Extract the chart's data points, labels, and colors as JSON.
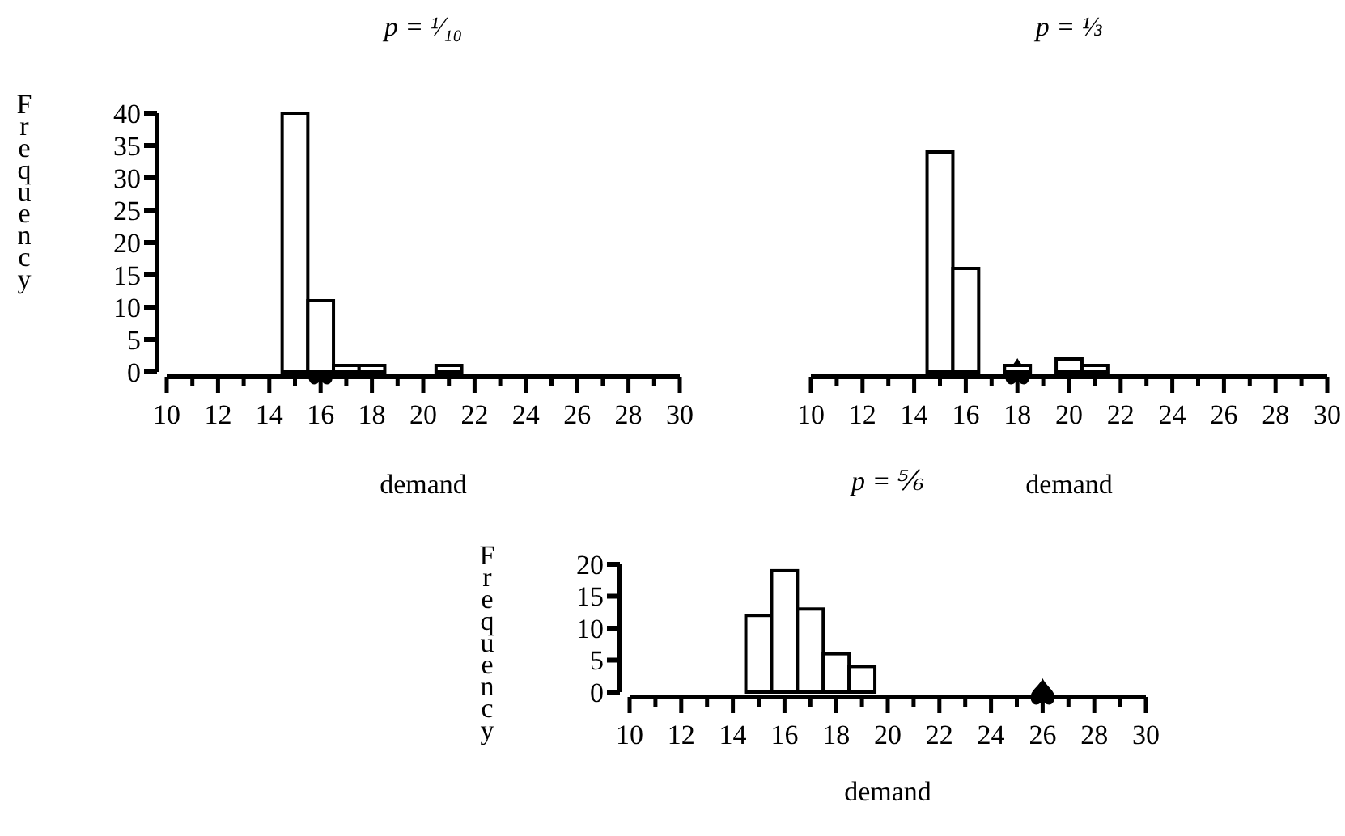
{
  "chart_data": [
    {
      "type": "histogram",
      "title": "p = ¹⁄₁₀",
      "xlabel": "demand",
      "ylabel": "Frequency",
      "bins": [
        14.5,
        15.5,
        16.5,
        17.5,
        18.5,
        19.5,
        20.5,
        21.5
      ],
      "values": [
        40,
        11,
        1,
        1,
        0,
        0,
        1
      ],
      "color": "#ffffff",
      "xlim": [
        10,
        30
      ],
      "xticks": [
        10,
        {
          "value": 11,
          "label": null
        },
        12,
        {
          "value": 13,
          "label": null
        },
        14,
        {
          "value": 15,
          "label": null
        },
        16,
        {
          "value": 17,
          "label": null
        },
        18,
        {
          "value": 19,
          "label": null
        },
        20,
        {
          "value": 21,
          "label": null
        },
        22,
        {
          "value": 23,
          "label": null
        },
        24,
        {
          "value": 25,
          "label": null
        },
        26,
        {
          "value": 27,
          "label": null
        },
        28,
        {
          "value": 29,
          "label": null
        },
        30
      ],
      "ylim": [
        0,
        40
      ],
      "yticks": [
        0,
        5,
        10,
        15,
        20,
        25,
        30,
        35,
        40
      ],
      "series": [
        {
          "type": "scatter",
          "x": [
            16
          ],
          "values": [
            0
          ],
          "color": "#000000"
        }
      ]
    },
    {
      "type": "histogram",
      "title": "p = ⅓",
      "xlabel": "demand",
      "bins": [
        14.5,
        15.5,
        16.5,
        17.5,
        18.5,
        19.5,
        20.5,
        21.5
      ],
      "values": [
        34,
        16,
        0,
        1,
        0,
        2,
        1
      ],
      "color": "#ffffff",
      "xlim": [
        10,
        30
      ],
      "xticks": [
        10,
        {
          "value": 11,
          "label": null
        },
        12,
        {
          "value": 13,
          "label": null
        },
        14,
        {
          "value": 15,
          "label": null
        },
        16,
        {
          "value": 17,
          "label": null
        },
        18,
        {
          "value": 19,
          "label": null
        },
        20,
        {
          "value": 21,
          "label": null
        },
        22,
        {
          "value": 23,
          "label": null
        },
        24,
        {
          "value": 25,
          "label": null
        },
        26,
        {
          "value": 27,
          "label": null
        },
        28,
        {
          "value": 29,
          "label": null
        },
        30
      ],
      "ylim": [
        0,
        40
      ],
      "tick_labels": "x",
      "series": [
        {
          "type": "scatter",
          "x": [
            18
          ],
          "values": [
            0
          ],
          "color": "#000000"
        }
      ]
    },
    {
      "type": "histogram",
      "title": "p = ⅚",
      "xlabel": "demand",
      "ylabel": "Frequency",
      "bins": [
        14.5,
        15.5,
        16.5,
        17.5,
        18.5,
        19.5
      ],
      "values": [
        12,
        19,
        13,
        6,
        4
      ],
      "color": "#ffffff",
      "xlim": [
        10,
        30
      ],
      "xticks": [
        10,
        {
          "value": 11,
          "label": null
        },
        12,
        {
          "value": 13,
          "label": null
        },
        14,
        {
          "value": 15,
          "label": null
        },
        16,
        {
          "value": 17,
          "label": null
        },
        18,
        {
          "value": 19,
          "label": null
        },
        20,
        {
          "value": 21,
          "label": null
        },
        22,
        {
          "value": 23,
          "label": null
        },
        24,
        {
          "value": 25,
          "label": null
        },
        26,
        {
          "value": 27,
          "label": null
        },
        28,
        {
          "value": 29,
          "label": null
        },
        30
      ],
      "ylim": [
        0,
        20
      ],
      "yticks": [
        0,
        5,
        10,
        15,
        20
      ],
      "series": [
        {
          "type": "scatter",
          "x": [
            26
          ],
          "values": [
            0
          ],
          "color": "#000000"
        }
      ]
    }
  ]
}
